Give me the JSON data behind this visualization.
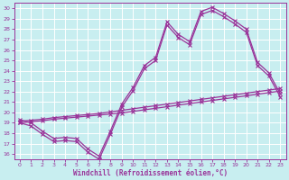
{
  "xlabel": "Windchill (Refroidissement éolien,°C)",
  "bg": "#c8eef0",
  "grid_color": "#ffffff",
  "line_color": "#993399",
  "xlim": [
    -0.5,
    23.5
  ],
  "ylim": [
    15.5,
    30.5
  ],
  "xticks": [
    0,
    1,
    2,
    3,
    4,
    5,
    6,
    7,
    8,
    9,
    10,
    11,
    12,
    13,
    14,
    15,
    16,
    17,
    18,
    19,
    20,
    21,
    22,
    23
  ],
  "yticks": [
    16,
    17,
    18,
    19,
    20,
    21,
    22,
    23,
    24,
    25,
    26,
    27,
    28,
    29,
    30
  ],
  "line_a_x": [
    0,
    1,
    2,
    3,
    4,
    5,
    6,
    7,
    8,
    9,
    10,
    11,
    12,
    13,
    14,
    15,
    16,
    17,
    18,
    19,
    20,
    21,
    22,
    23
  ],
  "line_a_y": [
    19.3,
    19.0,
    18.2,
    17.5,
    17.6,
    17.5,
    16.5,
    15.8,
    18.2,
    20.8,
    22.4,
    24.5,
    25.3,
    28.7,
    27.5,
    26.8,
    29.7,
    30.1,
    29.5,
    28.8,
    28.0,
    24.8,
    23.8,
    21.8
  ],
  "line_b_x": [
    0,
    1,
    2,
    3,
    4,
    5,
    6,
    7,
    8,
    9,
    10,
    11,
    12,
    13,
    14,
    15,
    16,
    17,
    18,
    19,
    20,
    21,
    22,
    23
  ],
  "line_b_y": [
    19.0,
    18.7,
    17.9,
    17.2,
    17.3,
    17.2,
    16.2,
    15.5,
    17.9,
    20.5,
    22.1,
    24.2,
    25.0,
    28.4,
    27.2,
    26.5,
    29.4,
    29.8,
    29.2,
    28.5,
    27.7,
    24.5,
    23.5,
    21.5
  ],
  "line_c_x": [
    0,
    1,
    2,
    3,
    4,
    5,
    6,
    7,
    8,
    9,
    10,
    11,
    12,
    13,
    14,
    15,
    16,
    17,
    18,
    19,
    20,
    21,
    22,
    23
  ],
  "line_c_y": [
    19.0,
    19.1,
    19.2,
    19.35,
    19.45,
    19.55,
    19.65,
    19.75,
    19.85,
    19.95,
    20.1,
    20.25,
    20.4,
    20.55,
    20.7,
    20.85,
    21.0,
    21.15,
    21.3,
    21.45,
    21.6,
    21.75,
    21.9,
    22.05
  ],
  "line_d_x": [
    0,
    1,
    2,
    3,
    4,
    5,
    6,
    7,
    8,
    9,
    10,
    11,
    12,
    13,
    14,
    15,
    16,
    17,
    18,
    19,
    20,
    21,
    22,
    23
  ],
  "line_d_y": [
    19.15,
    19.25,
    19.35,
    19.5,
    19.6,
    19.7,
    19.8,
    19.9,
    20.05,
    20.2,
    20.35,
    20.5,
    20.65,
    20.8,
    20.95,
    21.1,
    21.25,
    21.4,
    21.55,
    21.7,
    21.85,
    22.0,
    22.15,
    22.3
  ]
}
